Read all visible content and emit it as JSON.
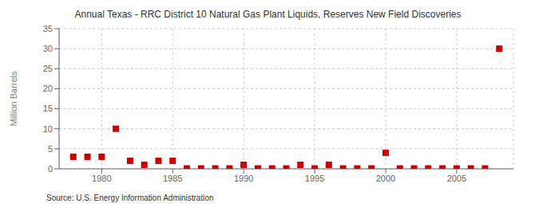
{
  "chart_data": {
    "type": "scatter",
    "title": "Annual Texas - RRC District 10 Natural Gas Plant Liquids, Reserves New Field Discoveries",
    "ylabel": "Million Barrels",
    "annotations": [
      "Source: U.S. Energy Information Administration"
    ],
    "x": [
      1978,
      1979,
      1980,
      1981,
      1982,
      1983,
      1984,
      1985,
      1986,
      1987,
      1988,
      1989,
      1990,
      1991,
      1992,
      1993,
      1994,
      1995,
      1996,
      1997,
      1998,
      1999,
      2000,
      2001,
      2002,
      2003,
      2004,
      2005,
      2006,
      2007,
      2008
    ],
    "values": [
      3.0,
      3.0,
      3.0,
      10.0,
      2.0,
      1.0,
      2.0,
      2.0,
      0.1,
      0.1,
      0.1,
      0.1,
      1.0,
      0.1,
      0.1,
      0.1,
      1.0,
      0.1,
      1.0,
      0.1,
      0.1,
      0.1,
      4.0,
      0.1,
      0.1,
      0.1,
      0.1,
      0.1,
      0.1,
      0.1,
      30.0
    ],
    "color": "#cc0000",
    "marker": "square",
    "xlim": [
      1977,
      2009
    ],
    "ylim": [
      0,
      35
    ],
    "xticks": [
      1980,
      1985,
      1990,
      1995,
      2000,
      2005
    ],
    "yticks": [
      0,
      5,
      10,
      15,
      20,
      25,
      30,
      35
    ],
    "grid": true
  }
}
